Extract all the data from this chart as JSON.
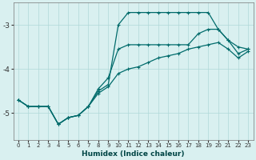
{
  "xlabel": "Humidex (Indice chaleur)",
  "background_color": "#d9f0f0",
  "grid_color": "#b0d8d8",
  "line_color": "#006b6b",
  "xlim": [
    -0.5,
    23.5
  ],
  "ylim": [
    -5.6,
    -2.5
  ],
  "yticks": [
    -5,
    -4,
    -3
  ],
  "xticks": [
    0,
    1,
    2,
    3,
    4,
    5,
    6,
    7,
    8,
    9,
    10,
    11,
    12,
    13,
    14,
    15,
    16,
    17,
    18,
    19,
    20,
    21,
    22,
    23
  ],
  "line1_x": [
    0,
    1,
    2,
    3,
    4,
    5,
    6,
    7,
    8,
    9,
    10,
    11,
    12,
    13,
    14,
    15,
    16,
    17,
    18,
    19,
    20,
    21,
    22,
    23
  ],
  "line1_y": [
    -4.7,
    -4.85,
    -4.85,
    -4.85,
    -5.25,
    -5.1,
    -5.05,
    -4.85,
    -4.5,
    -4.35,
    -3.0,
    -2.72,
    -2.72,
    -2.72,
    -2.72,
    -2.72,
    -2.72,
    -2.72,
    -2.72,
    -2.72,
    -3.1,
    -3.35,
    -3.5,
    -3.55
  ],
  "line2_x": [
    0,
    1,
    2,
    3,
    4,
    5,
    6,
    7,
    8,
    9,
    10,
    11,
    12,
    13,
    14,
    15,
    16,
    17,
    18,
    19,
    20,
    21,
    22,
    23
  ],
  "line2_y": [
    -4.7,
    -4.85,
    -4.85,
    -4.85,
    -5.25,
    -5.1,
    -5.05,
    -4.85,
    -4.45,
    -4.2,
    -3.55,
    -3.45,
    -3.45,
    -3.45,
    -3.45,
    -3.45,
    -3.45,
    -3.45,
    -3.2,
    -3.1,
    -3.1,
    -3.35,
    -3.65,
    -3.55
  ],
  "line3_x": [
    0,
    1,
    2,
    3,
    4,
    5,
    6,
    7,
    8,
    9,
    10,
    11,
    12,
    13,
    14,
    15,
    16,
    17,
    18,
    19,
    20,
    21,
    22,
    23
  ],
  "line3_y": [
    -4.7,
    -4.85,
    -4.85,
    -4.85,
    -5.25,
    -5.1,
    -5.05,
    -4.85,
    -4.55,
    -4.4,
    -4.1,
    -4.0,
    -3.95,
    -3.85,
    -3.75,
    -3.7,
    -3.65,
    -3.55,
    -3.5,
    -3.45,
    -3.4,
    -3.55,
    -3.75,
    -3.6
  ]
}
